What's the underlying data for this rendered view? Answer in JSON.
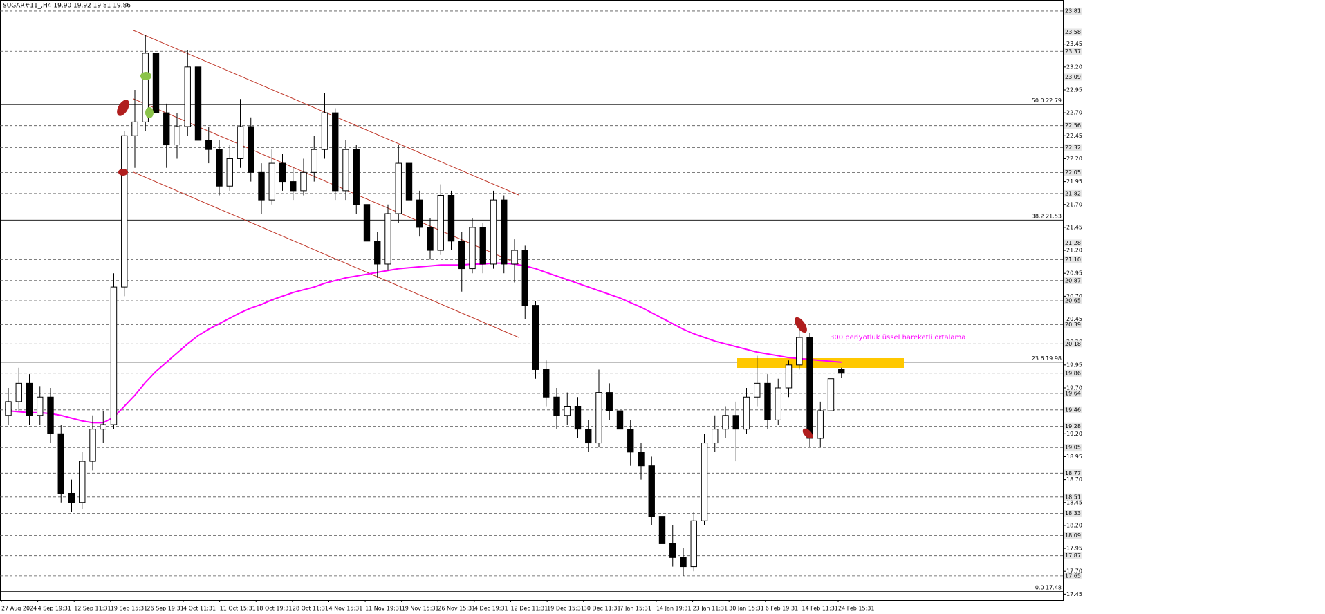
{
  "chart_data": {
    "type": "candlestick",
    "title": "SUGAR#11_,H4  19.90 19.92 19.81 19.86",
    "annotation": "300 periyotluk üssel hareketli ortalama",
    "up_color": "#ffffff",
    "down_color": "#000000",
    "ema_color": "#ff00ff",
    "ylim": [
      17.4,
      23.9
    ],
    "yticks": [
      23.45,
      {
        "value": 23.2,
        "label": "23.20"
      },
      22.95,
      {
        "value": 22.7,
        "label": "22.70"
      },
      22.45,
      {
        "value": 22.2,
        "label": "22.20"
      },
      21.95,
      {
        "value": 21.7,
        "label": "21.70"
      },
      21.45,
      {
        "value": 21.2,
        "label": "21.20"
      },
      20.95,
      {
        "value": 20.7,
        "label": "20.70"
      },
      20.45,
      {
        "value": 20.2,
        "label": "20.20"
      },
      19.95,
      {
        "value": 19.7,
        "label": "19.70"
      },
      19.45,
      {
        "value": 19.2,
        "label": "19.20"
      },
      18.95,
      {
        "value": 18.7,
        "label": "18.70"
      },
      18.45,
      {
        "value": 18.2,
        "label": "18.20"
      },
      17.95,
      {
        "value": 17.7,
        "label": "17.70"
      },
      17.45
    ],
    "price_lines": [
      23.81,
      23.58,
      23.37,
      23.09,
      22.56,
      22.32,
      22.05,
      21.82,
      21.28,
      {
        "value": 21.1,
        "label": "21.10"
      },
      20.87,
      20.65,
      20.39,
      20.18,
      19.86,
      19.64,
      19.46,
      19.28,
      19.05,
      18.77,
      18.51,
      18.33,
      18.09,
      17.87,
      17.65
    ],
    "fib_levels": [
      {
        "level": "50.0",
        "price": 22.79
      },
      {
        "level": "38.2",
        "price": 21.53
      },
      {
        "level": "23.6",
        "price": 19.98
      },
      {
        "level": "0.0",
        "price": 17.48
      }
    ],
    "x_labels": [
      "27 Aug 2024",
      "4 Sep 19:31",
      "12 Sep 11:31",
      "19 Sep 15:31",
      "26 Sep 19:31",
      "4 Oct 11:31",
      "11 Oct 15:31",
      "18 Oct 19:31",
      "28 Oct 11:31",
      "4 Nov 15:31",
      "11 Nov 19:31",
      "19 Nov 15:31",
      "26 Nov 15:31",
      "4 Dec 19:31",
      "12 Dec 11:31",
      "19 Dec 15:31",
      "30 Dec 11:31",
      "7 Jan 15:31",
      "14 Jan 19:31",
      "23 Jan 11:31",
      "30 Jan 15:31",
      "6 Feb 19:31",
      "14 Feb 11:31",
      "24 Feb 15:31"
    ],
    "ohlc": [
      [
        19.4,
        19.7,
        19.3,
        19.55
      ],
      [
        19.55,
        19.92,
        19.45,
        19.75
      ],
      [
        19.75,
        19.85,
        19.3,
        19.4
      ],
      [
        19.4,
        19.72,
        19.3,
        19.6
      ],
      [
        19.6,
        19.7,
        19.1,
        19.2
      ],
      [
        19.2,
        19.3,
        18.45,
        18.55
      ],
      [
        18.55,
        18.7,
        18.35,
        18.45
      ],
      [
        18.45,
        19.0,
        18.38,
        18.9
      ],
      [
        18.9,
        19.4,
        18.8,
        19.25
      ],
      [
        19.25,
        19.45,
        19.1,
        19.3
      ],
      [
        19.3,
        20.95,
        19.25,
        20.8
      ],
      [
        20.8,
        22.5,
        20.7,
        22.45
      ],
      [
        22.45,
        22.95,
        22.1,
        22.6
      ],
      [
        22.6,
        23.55,
        22.5,
        23.35
      ],
      [
        23.35,
        23.5,
        22.6,
        22.7
      ],
      [
        22.7,
        22.8,
        22.1,
        22.35
      ],
      [
        22.35,
        22.7,
        22.2,
        22.55
      ],
      [
        22.55,
        23.38,
        22.45,
        23.2
      ],
      [
        23.2,
        23.3,
        22.3,
        22.4
      ],
      [
        22.4,
        22.55,
        22.15,
        22.3
      ],
      [
        22.3,
        22.4,
        21.8,
        21.9
      ],
      [
        21.9,
        22.35,
        21.85,
        22.2
      ],
      [
        22.2,
        22.85,
        22.1,
        22.55
      ],
      [
        22.55,
        22.65,
        21.95,
        22.05
      ],
      [
        22.05,
        22.15,
        21.6,
        21.75
      ],
      [
        21.75,
        22.3,
        21.7,
        22.15
      ],
      [
        22.15,
        22.25,
        21.85,
        21.95
      ],
      [
        21.95,
        22.1,
        21.75,
        21.85
      ],
      [
        21.85,
        22.2,
        21.8,
        22.05
      ],
      [
        22.05,
        22.45,
        21.95,
        22.3
      ],
      [
        22.3,
        22.92,
        22.2,
        22.7
      ],
      [
        22.7,
        22.75,
        21.75,
        21.85
      ],
      [
        21.85,
        22.4,
        21.75,
        22.3
      ],
      [
        22.3,
        22.35,
        21.6,
        21.7
      ],
      [
        21.7,
        21.8,
        21.1,
        21.3
      ],
      [
        21.3,
        21.4,
        20.9,
        21.05
      ],
      [
        21.05,
        21.7,
        20.98,
        21.6
      ],
      [
        21.6,
        22.35,
        21.5,
        22.15
      ],
      [
        22.15,
        22.2,
        21.65,
        21.75
      ],
      [
        21.75,
        21.85,
        21.35,
        21.45
      ],
      [
        21.45,
        21.55,
        21.1,
        21.2
      ],
      [
        21.2,
        21.92,
        21.15,
        21.8
      ],
      [
        21.8,
        21.85,
        21.2,
        21.3
      ],
      [
        21.3,
        21.4,
        20.75,
        21.0
      ],
      [
        21.0,
        21.55,
        20.95,
        21.45
      ],
      [
        21.45,
        21.5,
        20.95,
        21.05
      ],
      [
        21.05,
        21.85,
        21.0,
        21.75
      ],
      [
        21.75,
        21.8,
        20.95,
        21.05
      ],
      [
        21.05,
        21.32,
        20.85,
        21.2
      ],
      [
        21.2,
        21.25,
        20.45,
        20.6
      ],
      [
        20.6,
        20.65,
        19.8,
        19.9
      ],
      [
        19.9,
        20.0,
        19.5,
        19.6
      ],
      [
        19.6,
        19.7,
        19.25,
        19.4
      ],
      [
        19.4,
        19.65,
        19.3,
        19.5
      ],
      [
        19.5,
        19.6,
        19.15,
        19.25
      ],
      [
        19.25,
        19.35,
        19.0,
        19.1
      ],
      [
        19.1,
        19.9,
        19.05,
        19.65
      ],
      [
        19.65,
        19.75,
        19.35,
        19.45
      ],
      [
        19.45,
        19.55,
        19.15,
        19.25
      ],
      [
        19.25,
        19.35,
        18.85,
        19.0
      ],
      [
        19.0,
        19.1,
        18.7,
        18.85
      ],
      [
        18.85,
        18.95,
        18.2,
        18.3
      ],
      [
        18.3,
        18.55,
        17.9,
        18.0
      ],
      [
        18.0,
        18.2,
        17.75,
        17.85
      ],
      [
        17.85,
        17.95,
        17.65,
        17.75
      ],
      [
        17.75,
        18.35,
        17.7,
        18.25
      ],
      [
        18.25,
        19.2,
        18.2,
        19.1
      ],
      [
        19.1,
        19.4,
        19.0,
        19.25
      ],
      [
        19.25,
        19.5,
        19.15,
        19.4
      ],
      [
        19.4,
        19.55,
        18.9,
        19.25
      ],
      [
        19.25,
        19.7,
        19.2,
        19.6
      ],
      [
        19.6,
        20.05,
        19.5,
        19.75
      ],
      [
        19.75,
        19.85,
        19.25,
        19.35
      ],
      [
        19.35,
        19.8,
        19.3,
        19.7
      ],
      [
        19.7,
        20.0,
        19.6,
        19.95
      ],
      [
        19.95,
        20.42,
        19.9,
        20.25
      ],
      [
        20.25,
        20.3,
        19.05,
        19.15
      ],
      [
        19.15,
        19.55,
        19.05,
        19.45
      ],
      [
        19.45,
        19.92,
        19.4,
        19.8
      ],
      [
        19.9,
        19.92,
        19.81,
        19.86
      ]
    ],
    "ema": [
      19.45,
      19.44,
      19.43,
      19.43,
      19.42,
      19.4,
      19.37,
      19.34,
      19.32,
      19.32,
      19.38,
      19.5,
      19.62,
      19.76,
      19.88,
      19.98,
      20.08,
      20.18,
      20.27,
      20.34,
      20.4,
      20.46,
      20.52,
      20.57,
      20.61,
      20.66,
      20.7,
      20.74,
      20.77,
      20.8,
      20.84,
      20.87,
      20.9,
      20.92,
      20.94,
      20.96,
      20.98,
      21.0,
      21.01,
      21.02,
      21.03,
      21.04,
      21.04,
      21.04,
      21.05,
      21.05,
      21.06,
      21.06,
      21.05,
      21.03,
      21.0,
      20.96,
      20.92,
      20.88,
      20.84,
      20.8,
      20.76,
      20.72,
      20.68,
      20.63,
      20.58,
      20.52,
      20.46,
      20.4,
      20.34,
      20.29,
      20.25,
      20.21,
      20.18,
      20.15,
      20.12,
      20.09,
      20.07,
      20.05,
      20.03,
      20.02,
      20.01,
      20.0,
      19.99,
      19.98
    ]
  }
}
